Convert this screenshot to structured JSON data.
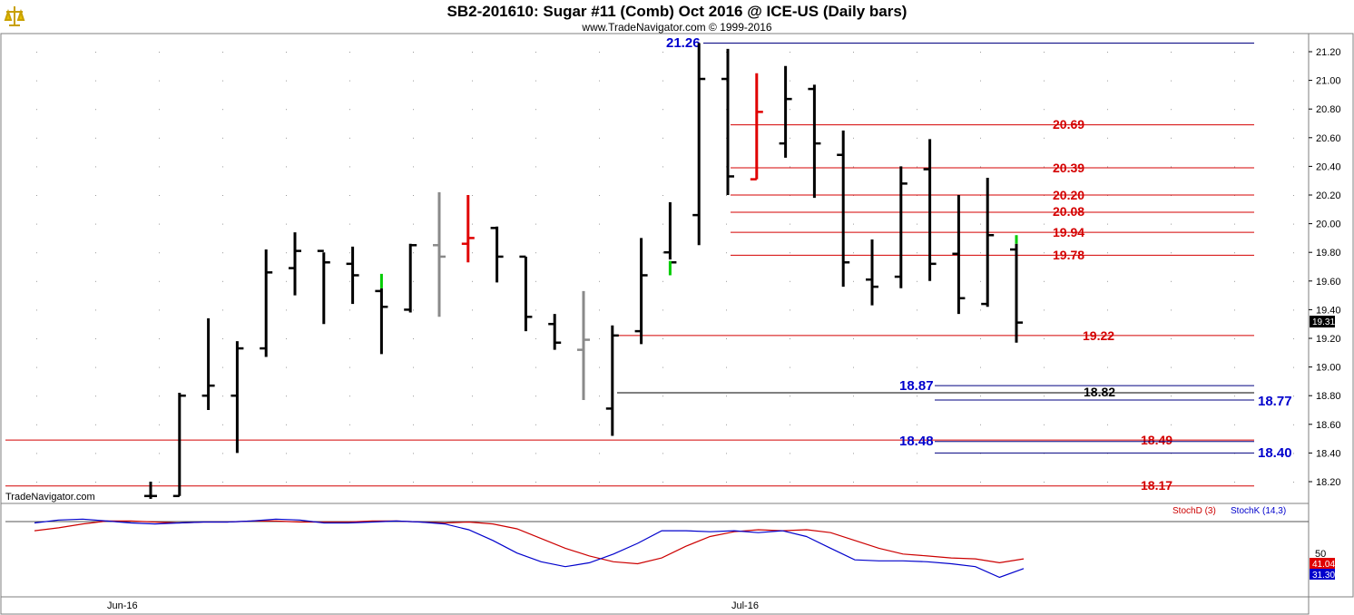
{
  "header": {
    "title": "SB2-201610:  Sugar #11 (Comb) Oct 2016 @ ICE-US  (Daily bars)",
    "subtitle": "www.TradeNavigator.com © 1999-2016"
  },
  "watermark": "TradeNavigator.com",
  "colors": {
    "up_bar": "#000000",
    "red_bar": "#e00000",
    "gray_bar": "#8a8a8a",
    "green_tick": "#00cc00",
    "red_line": "#d40000",
    "blue_line": "#000080",
    "blue_text": "#0000cc",
    "stoch_d": "#cc0000",
    "stoch_k": "#0000cc"
  },
  "chart_data": {
    "type": "ohlc",
    "x_labels": [
      "Jun-16",
      "Jul-16"
    ],
    "y_ticks": [
      "18.20",
      "18.40",
      "18.60",
      "18.80",
      "19.00",
      "19.20",
      "19.40",
      "19.60",
      "19.80",
      "20.00",
      "20.20",
      "20.40",
      "20.60",
      "20.80",
      "21.00",
      "21.20"
    ],
    "ylim": [
      18.05,
      21.32
    ],
    "last_price": "19.31",
    "bars": [
      {
        "o": 18.1,
        "h": 18.2,
        "l": 18.08,
        "c": 18.1,
        "color": "black"
      },
      {
        "o": 18.1,
        "h": 18.82,
        "l": 18.1,
        "c": 18.8,
        "color": "black"
      },
      {
        "o": 18.8,
        "h": 19.34,
        "l": 18.7,
        "c": 18.87,
        "color": "black"
      },
      {
        "o": 18.8,
        "h": 19.18,
        "l": 18.4,
        "c": 19.13,
        "color": "black"
      },
      {
        "o": 19.13,
        "h": 19.82,
        "l": 19.07,
        "c": 19.66,
        "color": "black"
      },
      {
        "o": 19.69,
        "h": 19.94,
        "l": 19.5,
        "c": 19.81,
        "color": "black"
      },
      {
        "o": 19.81,
        "h": 19.8,
        "l": 19.3,
        "c": 19.73,
        "color": "black"
      },
      {
        "o": 19.72,
        "h": 19.84,
        "l": 19.44,
        "c": 19.64,
        "color": "black"
      },
      {
        "o": 19.53,
        "h": 19.55,
        "l": 19.09,
        "c": 19.42,
        "color": "black",
        "up_tick": [
          19.55,
          19.65
        ]
      },
      {
        "o": 19.4,
        "h": 19.86,
        "l": 19.38,
        "c": 19.85,
        "color": "black"
      },
      {
        "o": 19.85,
        "h": 20.22,
        "l": 19.35,
        "c": 19.77,
        "color": "gray"
      },
      {
        "o": 19.86,
        "h": 20.2,
        "l": 19.73,
        "c": 19.9,
        "color": "red"
      },
      {
        "o": 19.97,
        "h": 19.98,
        "l": 19.59,
        "c": 19.77,
        "color": "black"
      },
      {
        "o": 19.77,
        "h": 19.77,
        "l": 19.25,
        "c": 19.35,
        "color": "black"
      },
      {
        "o": 19.3,
        "h": 19.37,
        "l": 19.12,
        "c": 19.17,
        "color": "black"
      },
      {
        "o": 19.12,
        "h": 19.53,
        "l": 18.77,
        "c": 19.19,
        "color": "gray"
      },
      {
        "o": 18.71,
        "h": 19.29,
        "l": 18.52,
        "c": 19.22,
        "color": "black"
      },
      {
        "o": 19.25,
        "h": 19.9,
        "l": 19.16,
        "c": 19.64,
        "color": "black"
      },
      {
        "o": 19.8,
        "h": 20.15,
        "l": 19.75,
        "c": 19.73,
        "color": "black",
        "up_tick": [
          19.64,
          19.74
        ]
      },
      {
        "o": 20.06,
        "h": 21.26,
        "l": 19.85,
        "c": 21.01,
        "color": "black"
      },
      {
        "o": 21.01,
        "h": 21.22,
        "l": 20.2,
        "c": 20.33,
        "color": "black"
      },
      {
        "o": 20.31,
        "h": 21.05,
        "l": 20.31,
        "c": 20.78,
        "color": "red"
      },
      {
        "o": 20.56,
        "h": 21.1,
        "l": 20.46,
        "c": 20.87,
        "color": "black"
      },
      {
        "o": 20.94,
        "h": 20.97,
        "l": 20.18,
        "c": 20.56,
        "color": "black"
      },
      {
        "o": 20.48,
        "h": 20.65,
        "l": 19.56,
        "c": 19.73,
        "color": "black"
      },
      {
        "o": 19.61,
        "h": 19.89,
        "l": 19.43,
        "c": 19.56,
        "color": "black"
      },
      {
        "o": 19.63,
        "h": 20.4,
        "l": 19.55,
        "c": 20.28,
        "color": "black"
      },
      {
        "o": 20.38,
        "h": 20.59,
        "l": 19.6,
        "c": 19.72,
        "color": "black"
      },
      {
        "o": 19.79,
        "h": 20.2,
        "l": 19.37,
        "c": 19.48,
        "color": "black"
      },
      {
        "o": 19.44,
        "h": 20.32,
        "l": 19.42,
        "c": 19.92,
        "color": "black"
      },
      {
        "o": 19.82,
        "h": 19.86,
        "l": 19.17,
        "c": 19.31,
        "color": "black",
        "up_tick": [
          19.86,
          19.92
        ]
      }
    ],
    "levels": [
      {
        "value": 21.26,
        "label": "21.26",
        "line": "blue",
        "text": "blue"
      },
      {
        "value": 20.69,
        "label": "20.69",
        "line": "red",
        "text": "red"
      },
      {
        "value": 20.39,
        "label": "20.39",
        "line": "red",
        "text": "red"
      },
      {
        "value": 20.2,
        "label": "20.20",
        "line": "red",
        "text": "red"
      },
      {
        "value": 20.08,
        "label": "20.08",
        "line": "red",
        "text": "red"
      },
      {
        "value": 19.94,
        "label": "19.94",
        "line": "red",
        "text": "red"
      },
      {
        "value": 19.78,
        "label": "19.78",
        "line": "red",
        "text": "red"
      },
      {
        "value": 19.22,
        "label": "19.22",
        "line": "red",
        "text": "red"
      },
      {
        "value": 18.87,
        "label": "18.87",
        "line": "blue",
        "text": "blue"
      },
      {
        "value": 18.82,
        "label": "18.82",
        "line": "black",
        "text": "black"
      },
      {
        "value": 18.77,
        "label": "18.77",
        "line": "blue",
        "text": "blue"
      },
      {
        "value": 18.49,
        "label": "18.49",
        "line": "red",
        "text": "red"
      },
      {
        "value": 18.48,
        "label": "18.48",
        "line": "blue",
        "text": "blue"
      },
      {
        "value": 18.4,
        "label": "18.40",
        "line": "blue",
        "text": "blue"
      },
      {
        "value": 18.17,
        "label": "18.17",
        "line": "red",
        "text": "red"
      }
    ],
    "indicator": {
      "legend_d": "StochD (3)",
      "legend_k": "StochK (14,3)",
      "tick_label": "50",
      "ylim": [
        0,
        100
      ],
      "d_value": "41.04",
      "k_value": "31.30",
      "stoch_d": [
        70,
        73,
        77,
        80,
        80,
        79,
        78,
        79,
        79,
        80,
        80,
        79,
        79,
        79,
        80,
        80,
        79,
        78,
        79,
        77,
        72,
        62,
        52,
        44,
        38,
        36,
        42,
        54,
        64,
        69,
        71,
        70,
        71,
        68,
        60,
        52,
        46,
        44,
        42,
        41,
        37,
        41
      ],
      "stoch_k": [
        78,
        81,
        82,
        80,
        78,
        77,
        78,
        79,
        79,
        80,
        82,
        81,
        78,
        78,
        79,
        80,
        79,
        77,
        71,
        60,
        47,
        38,
        33,
        37,
        46,
        57,
        70,
        70,
        69,
        70,
        68,
        70,
        64,
        52,
        40,
        39,
        39,
        38,
        36,
        33,
        22,
        31
      ]
    }
  }
}
